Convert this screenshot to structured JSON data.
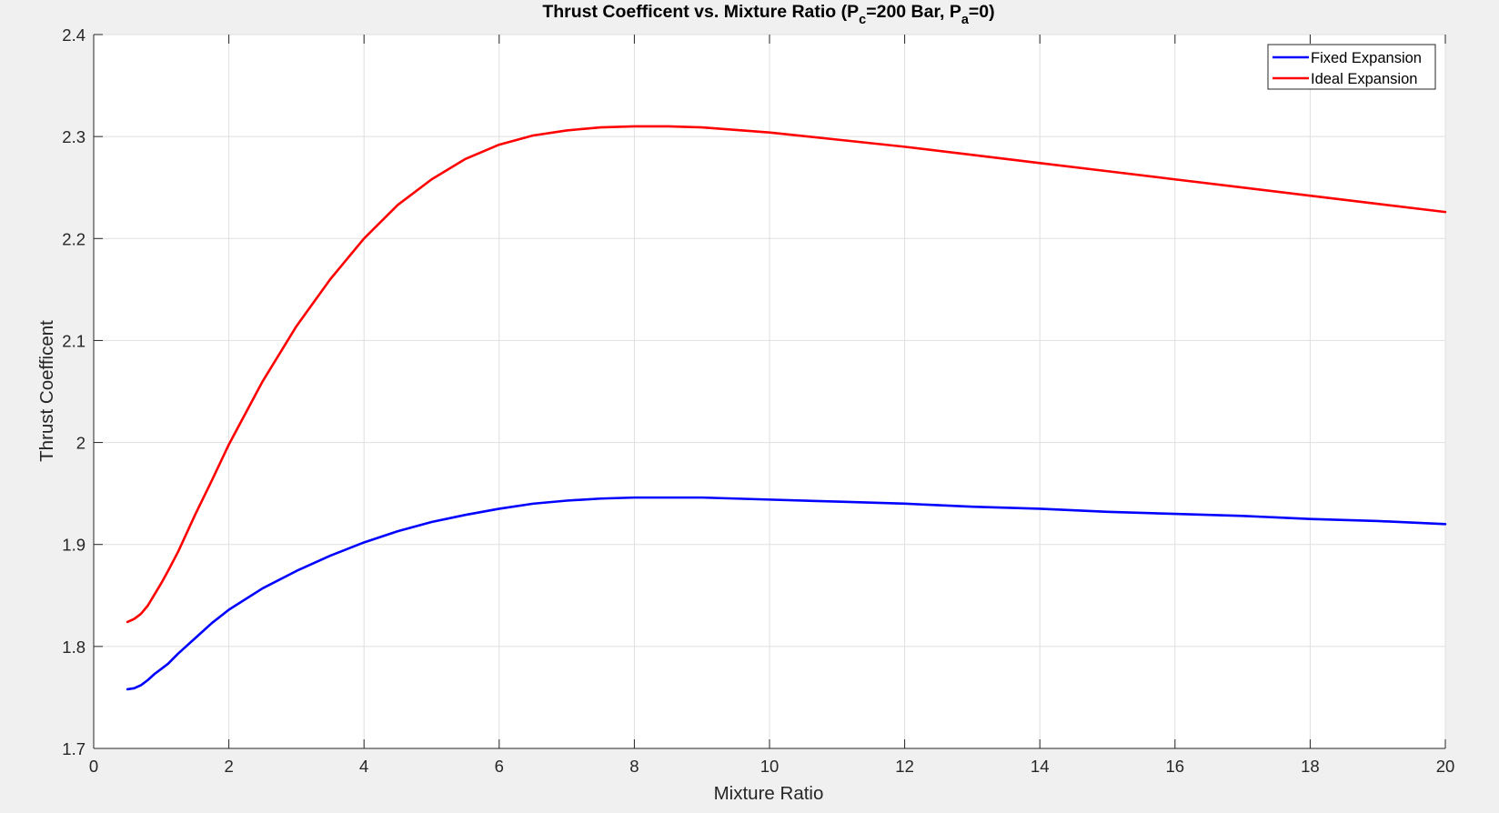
{
  "chart_data": {
    "type": "line",
    "title": {
      "before_c": "Thrust Coefficent vs. Mixture Ratio (P",
      "sub_c": "c",
      "middle": "=200 Bar, P",
      "sub_a": "a",
      "after": "=0)"
    },
    "xlabel": "Mixture Ratio",
    "ylabel": "Thrust Coefficent",
    "xlim": [
      0,
      20
    ],
    "ylim": [
      1.7,
      2.4
    ],
    "xticks": [
      0,
      2,
      4,
      6,
      8,
      10,
      12,
      14,
      16,
      18,
      20
    ],
    "yticks": [
      1.7,
      1.8,
      1.9,
      2,
      2.1,
      2.2,
      2.3,
      2.4
    ],
    "grid": true,
    "legend_position": "top-right",
    "x": [
      0.5,
      0.6,
      0.7,
      0.8,
      0.9,
      1.0,
      1.1,
      1.25,
      1.5,
      1.75,
      2.0,
      2.5,
      3.0,
      3.5,
      4.0,
      4.5,
      5.0,
      5.5,
      6.0,
      6.5,
      7.0,
      7.5,
      8.0,
      8.5,
      9.0,
      10.0,
      11.0,
      12.0,
      13.0,
      14.0,
      15.0,
      16.0,
      17.0,
      18.0,
      19.0,
      20.0
    ],
    "series": [
      {
        "name": "Fixed Expansion",
        "color": "#0000ff",
        "values": [
          1.758,
          1.759,
          1.762,
          1.767,
          1.773,
          1.778,
          1.783,
          1.793,
          1.808,
          1.823,
          1.836,
          1.857,
          1.874,
          1.889,
          1.902,
          1.913,
          1.922,
          1.929,
          1.935,
          1.94,
          1.943,
          1.945,
          1.946,
          1.946,
          1.946,
          1.944,
          1.942,
          1.94,
          1.937,
          1.935,
          1.932,
          1.93,
          1.928,
          1.925,
          1.923,
          1.92
        ]
      },
      {
        "name": "Ideal Expansion",
        "color": "#ff0000",
        "values": [
          1.824,
          1.827,
          1.832,
          1.84,
          1.851,
          1.862,
          1.874,
          1.893,
          1.929,
          1.963,
          1.998,
          2.06,
          2.114,
          2.16,
          2.2,
          2.233,
          2.258,
          2.278,
          2.292,
          2.301,
          2.306,
          2.309,
          2.31,
          2.31,
          2.309,
          2.304,
          2.297,
          2.29,
          2.282,
          2.274,
          2.266,
          2.258,
          2.25,
          2.242,
          2.234,
          2.226
        ]
      }
    ]
  }
}
